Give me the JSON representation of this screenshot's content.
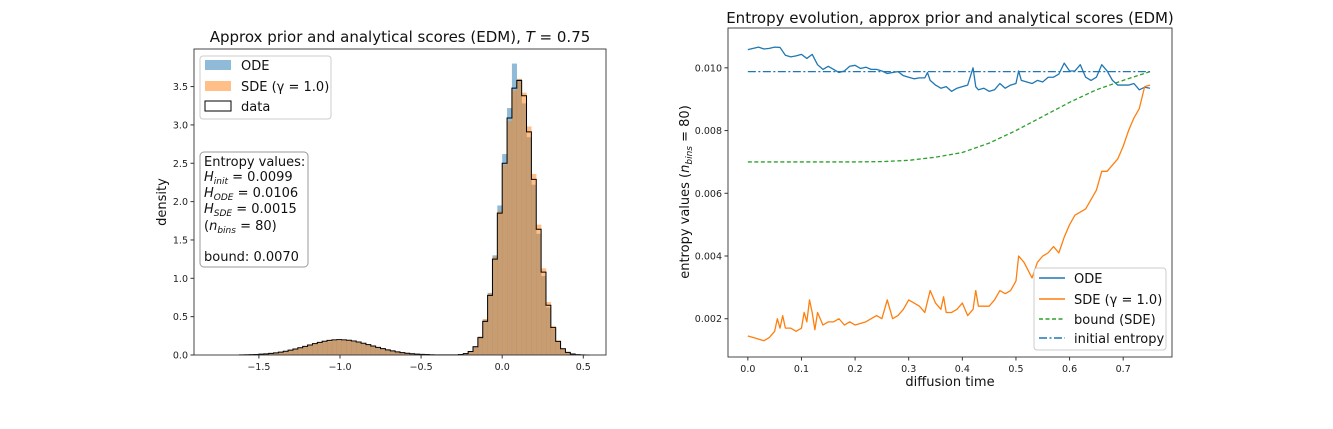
{
  "chart_data": [
    {
      "type": "bar",
      "title": {
        "text": "Approx prior and analytical scores (EDM), ",
        "var": "T",
        "rest": " = 0.75"
      },
      "xlabel": "",
      "ylabel": "density",
      "xlim": [
        -1.9,
        0.64
      ],
      "ylim": [
        0,
        3.99
      ],
      "xticks": [
        -1.5,
        -1.0,
        -0.5,
        0.0,
        0.5
      ],
      "xtick_labels": [
        "−1.5",
        "−1.0",
        "−0.5",
        "0.0",
        "0.5"
      ],
      "yticks": [
        0.0,
        0.5,
        1.0,
        1.5,
        2.0,
        2.5,
        3.0,
        3.5
      ],
      "ytick_labels": [
        "0.0",
        "0.5",
        "1.0",
        "1.5",
        "2.0",
        "2.5",
        "3.0",
        "3.5"
      ],
      "grid": false,
      "legend_placement": "top-left",
      "bin_start": -1.62,
      "bin_width": 0.03,
      "series": [
        {
          "name": "ODE",
          "style": "filled",
          "color": "#1f77b4",
          "alpha": 0.5,
          "values": [
            0.002,
            0.003,
            0.004,
            0.006,
            0.01,
            0.014,
            0.019,
            0.026,
            0.035,
            0.046,
            0.059,
            0.073,
            0.088,
            0.105,
            0.122,
            0.139,
            0.155,
            0.168,
            0.178,
            0.185,
            0.188,
            0.186,
            0.181,
            0.172,
            0.16,
            0.145,
            0.128,
            0.111,
            0.094,
            0.078,
            0.063,
            0.05,
            0.039,
            0.029,
            0.022,
            0.016,
            0.011,
            0.008,
            0.005,
            0.004,
            0.002,
            0.001,
            0.001,
            0.001,
            0.002,
            0.007,
            0.019,
            0.05,
            0.115,
            0.24,
            0.46,
            0.81,
            1.3,
            1.95,
            2.62,
            3.22,
            3.8,
            3.6,
            3.28,
            2.84,
            2.22,
            1.58,
            1.03,
            0.62,
            0.34,
            0.17,
            0.078,
            0.032,
            0.012,
            0.005,
            0.001,
            0.0
          ]
        },
        {
          "name": "SDE (γ = 1.0)",
          "style": "filled",
          "color": "#ff7f0e",
          "alpha": 0.5,
          "values": [
            0.002,
            0.003,
            0.005,
            0.007,
            0.01,
            0.014,
            0.02,
            0.027,
            0.036,
            0.047,
            0.061,
            0.076,
            0.092,
            0.11,
            0.128,
            0.146,
            0.163,
            0.177,
            0.188,
            0.196,
            0.199,
            0.197,
            0.192,
            0.182,
            0.169,
            0.153,
            0.135,
            0.117,
            0.099,
            0.082,
            0.066,
            0.052,
            0.041,
            0.031,
            0.023,
            0.017,
            0.012,
            0.008,
            0.006,
            0.004,
            0.003,
            0.002,
            0.001,
            0.001,
            0.002,
            0.008,
            0.02,
            0.05,
            0.11,
            0.24,
            0.47,
            0.8,
            1.28,
            1.88,
            2.48,
            3.05,
            3.45,
            3.6,
            3.42,
            2.98,
            2.36,
            1.7,
            1.13,
            0.69,
            0.38,
            0.19,
            0.088,
            0.038,
            0.015,
            0.006,
            0.002,
            0.0
          ]
        },
        {
          "name": "data",
          "style": "step",
          "color": "#000000",
          "values": [
            0.002,
            0.003,
            0.005,
            0.007,
            0.011,
            0.015,
            0.021,
            0.028,
            0.038,
            0.049,
            0.063,
            0.078,
            0.094,
            0.112,
            0.13,
            0.148,
            0.165,
            0.179,
            0.19,
            0.197,
            0.2,
            0.198,
            0.193,
            0.183,
            0.17,
            0.154,
            0.136,
            0.118,
            0.1,
            0.083,
            0.067,
            0.053,
            0.041,
            0.031,
            0.023,
            0.017,
            0.012,
            0.008,
            0.006,
            0.004,
            0.002,
            0.001,
            0.001,
            0.001,
            0.002,
            0.007,
            0.018,
            0.046,
            0.107,
            0.227,
            0.439,
            0.777,
            1.25,
            1.85,
            2.5,
            3.09,
            3.48,
            3.58,
            3.38,
            2.91,
            2.29,
            1.64,
            1.08,
            0.649,
            0.357,
            0.178,
            0.082,
            0.034,
            0.013,
            0.005,
            0.001,
            0.0
          ]
        }
      ],
      "annotation": {
        "heading": "Entropy values:",
        "lines": [
          {
            "sym": "H",
            "sub": "init",
            "val": " = 0.0099"
          },
          {
            "sym": "H",
            "sub": "ODE",
            "val": " = 0.0106"
          },
          {
            "sym": "H",
            "sub": "SDE",
            "val": " = 0.0015"
          },
          {
            "pre": " (",
            "sym": "n",
            "sub": "bins",
            "val": " = 80)"
          }
        ],
        "bound": " bound: 0.0070"
      }
    },
    {
      "type": "line",
      "title": "Entropy evolution, approx prior and analytical scores (EDM)",
      "xlabel": "diffusion time",
      "ylabel": {
        "pre": "entropy values (",
        "sym": "n",
        "sub": "bins",
        "post": " = 80)"
      },
      "xlim": [
        -0.037,
        0.791
      ],
      "ylim": [
        0.00078,
        0.01127
      ],
      "xticks": [
        0.0,
        0.1,
        0.2,
        0.3,
        0.4,
        0.5,
        0.6,
        0.7
      ],
      "xtick_labels": [
        "0.0",
        "0.1",
        "0.2",
        "0.3",
        "0.4",
        "0.5",
        "0.6",
        "0.7"
      ],
      "yticks": [
        0.002,
        0.004,
        0.006,
        0.008,
        0.01
      ],
      "ytick_labels": [
        "0.002",
        "0.004",
        "0.006",
        "0.008",
        "0.010"
      ],
      "grid": false,
      "legend_placement": "bottom-right",
      "series": [
        {
          "name": "ODE",
          "color": "#1f77b4",
          "dash": "solid",
          "x": [
            0.0,
            0.01,
            0.02,
            0.03,
            0.04,
            0.05,
            0.06,
            0.07,
            0.08,
            0.09,
            0.1,
            0.11,
            0.12,
            0.13,
            0.14,
            0.15,
            0.16,
            0.17,
            0.18,
            0.19,
            0.2,
            0.21,
            0.22,
            0.23,
            0.24,
            0.25,
            0.26,
            0.27,
            0.28,
            0.29,
            0.3,
            0.31,
            0.32,
            0.33,
            0.335,
            0.34,
            0.35,
            0.36,
            0.37,
            0.38,
            0.39,
            0.4,
            0.41,
            0.42,
            0.425,
            0.43,
            0.44,
            0.45,
            0.46,
            0.47,
            0.48,
            0.49,
            0.5,
            0.505,
            0.51,
            0.53,
            0.54,
            0.55,
            0.56,
            0.57,
            0.58,
            0.59,
            0.6,
            0.61,
            0.62,
            0.63,
            0.64,
            0.65,
            0.66,
            0.67,
            0.68,
            0.69,
            0.7,
            0.71,
            0.72,
            0.73,
            0.74,
            0.75
          ],
          "y": [
            0.01058,
            0.01062,
            0.01066,
            0.0106,
            0.01062,
            0.01066,
            0.01065,
            0.0104,
            0.01035,
            0.01038,
            0.01043,
            0.0103,
            0.01043,
            0.0101,
            0.00995,
            0.01005,
            0.00995,
            0.00985,
            0.0099,
            0.01005,
            0.01008,
            0.00998,
            0.01002,
            0.00995,
            0.00995,
            0.0099,
            0.00982,
            0.00985,
            0.00988,
            0.00975,
            0.0097,
            0.00965,
            0.00968,
            0.00968,
            0.00985,
            0.0096,
            0.00945,
            0.00935,
            0.0094,
            0.00925,
            0.00935,
            0.0094,
            0.00945,
            0.01,
            0.0094,
            0.0093,
            0.00935,
            0.00925,
            0.0093,
            0.0095,
            0.00935,
            0.00945,
            0.0095,
            0.0099,
            0.0096,
            0.0095,
            0.0096,
            0.00955,
            0.0097,
            0.0097,
            0.0098,
            0.01015,
            0.0099,
            0.0099,
            0.0101,
            0.0097,
            0.0096,
            0.0097,
            0.0101,
            0.0099,
            0.0096,
            0.00945,
            0.00945,
            0.00945,
            0.0095,
            0.0093,
            0.00938,
            0.00935
          ]
        },
        {
          "name": "SDE (γ = 1.0)",
          "color": "#ff7f0e",
          "dash": "solid",
          "x": [
            0.0,
            0.01,
            0.02,
            0.03,
            0.04,
            0.05,
            0.055,
            0.06,
            0.065,
            0.07,
            0.08,
            0.09,
            0.1,
            0.105,
            0.11,
            0.115,
            0.12,
            0.125,
            0.13,
            0.14,
            0.15,
            0.16,
            0.17,
            0.18,
            0.19,
            0.2,
            0.22,
            0.24,
            0.25,
            0.26,
            0.27,
            0.28,
            0.29,
            0.3,
            0.31,
            0.32,
            0.33,
            0.34,
            0.35,
            0.36,
            0.365,
            0.37,
            0.38,
            0.39,
            0.4,
            0.41,
            0.42,
            0.425,
            0.43,
            0.45,
            0.46,
            0.47,
            0.48,
            0.49,
            0.5,
            0.505,
            0.515,
            0.53,
            0.54,
            0.55,
            0.56,
            0.57,
            0.58,
            0.59,
            0.6,
            0.61,
            0.62,
            0.63,
            0.64,
            0.65,
            0.66,
            0.67,
            0.68,
            0.69,
            0.7,
            0.71,
            0.72,
            0.73,
            0.74,
            0.75
          ],
          "y": [
            0.00145,
            0.0014,
            0.00135,
            0.0013,
            0.0014,
            0.0016,
            0.002,
            0.0017,
            0.0021,
            0.0017,
            0.0017,
            0.0016,
            0.0017,
            0.0022,
            0.0019,
            0.0026,
            0.0022,
            0.00165,
            0.0022,
            0.0018,
            0.0019,
            0.0019,
            0.002,
            0.0018,
            0.0019,
            0.0018,
            0.0019,
            0.0021,
            0.002,
            0.0026,
            0.002,
            0.0021,
            0.0023,
            0.0026,
            0.0025,
            0.0024,
            0.0022,
            0.0029,
            0.0025,
            0.0023,
            0.0027,
            0.0022,
            0.0022,
            0.0023,
            0.0025,
            0.0021,
            0.0023,
            0.0029,
            0.0024,
            0.0024,
            0.0026,
            0.0029,
            0.0028,
            0.0029,
            0.0032,
            0.004,
            0.0038,
            0.0033,
            0.0038,
            0.004,
            0.0041,
            0.0043,
            0.0041,
            0.0046,
            0.005,
            0.0053,
            0.0054,
            0.0055,
            0.0058,
            0.0061,
            0.0067,
            0.0067,
            0.0069,
            0.0071,
            0.0075,
            0.008,
            0.0084,
            0.0087,
            0.0094,
            0.00945
          ]
        },
        {
          "name": "bound (SDE)",
          "color": "#2ca02c",
          "dash": "dashed",
          "x": [
            0.0,
            0.1,
            0.2,
            0.25,
            0.3,
            0.35,
            0.4,
            0.45,
            0.5,
            0.55,
            0.6,
            0.65,
            0.7,
            0.75
          ],
          "y": [
            0.007,
            0.007,
            0.007,
            0.00701,
            0.00705,
            0.00715,
            0.0073,
            0.0076,
            0.008,
            0.00845,
            0.0089,
            0.0093,
            0.0096,
            0.00988
          ]
        },
        {
          "name": "initial entropy",
          "color": "#1f77b4",
          "dash": "dashdot",
          "x": [
            0.0,
            0.75
          ],
          "y": [
            0.00988,
            0.00988
          ]
        }
      ]
    }
  ]
}
